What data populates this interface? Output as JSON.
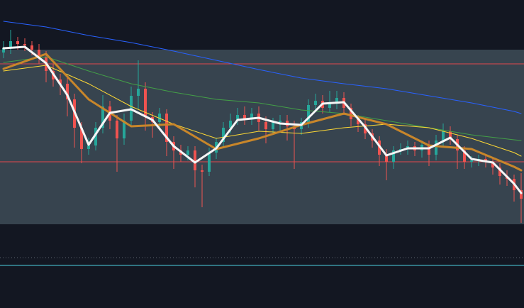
{
  "chart_data": {
    "type": "candlestick",
    "ylim": [
      0,
      434
    ],
    "background": "#131722",
    "up_color": "#26a69a",
    "down_color": "#ef5350",
    "zone": [
      118,
      364
    ],
    "zone_color": "#37444f",
    "levels": [
      {
        "value": 344,
        "color": "#e0474c",
        "style": "solid"
      },
      {
        "value": 206,
        "color": "#e0474c",
        "style": "solid"
      },
      {
        "value": 71,
        "color": "#5d6470",
        "style": "dotted"
      },
      {
        "value": 60,
        "color": "#4dd0e1",
        "style": "solid"
      }
    ],
    "open": [
      360,
      366,
      376,
      372,
      370,
      364,
      354,
      334,
      322,
      316,
      294,
      254,
      224,
      229,
      254,
      284,
      264,
      239,
      264,
      299,
      309,
      269,
      262,
      274,
      234,
      222,
      216,
      222,
      194,
      192,
      219,
      234,
      254,
      264,
      272,
      266,
      274,
      262,
      252,
      262,
      264,
      256,
      252,
      262,
      286,
      292,
      282,
      288,
      296,
      282,
      266,
      259,
      246,
      236,
      216,
      206,
      222,
      224,
      228,
      222,
      230,
      216,
      236,
      249,
      238,
      222,
      206,
      208,
      210,
      206,
      198,
      186,
      182,
      166
    ],
    "high": [
      376,
      392,
      382,
      380,
      376,
      372,
      362,
      344,
      330,
      326,
      302,
      262,
      240,
      262,
      300,
      292,
      272,
      274,
      312,
      349,
      318,
      276,
      282,
      280,
      242,
      230,
      228,
      228,
      202,
      226,
      240,
      262,
      274,
      282,
      284,
      282,
      284,
      270,
      268,
      272,
      272,
      264,
      268,
      294,
      302,
      300,
      306,
      306,
      304,
      288,
      272,
      266,
      252,
      242,
      224,
      228,
      232,
      236,
      234,
      236,
      236,
      244,
      260,
      256,
      244,
      228,
      214,
      216,
      216,
      212,
      204,
      194,
      188,
      190
    ],
    "low": [
      352,
      358,
      364,
      362,
      356,
      344,
      318,
      312,
      300,
      270,
      226,
      204,
      216,
      222,
      246,
      252,
      192,
      230,
      256,
      280,
      250,
      240,
      254,
      214,
      196,
      206,
      208,
      170,
      142,
      186,
      210,
      226,
      246,
      258,
      258,
      258,
      250,
      232,
      244,
      250,
      236,
      196,
      244,
      254,
      276,
      274,
      276,
      280,
      272,
      256,
      248,
      238,
      226,
      200,
      180,
      196,
      216,
      216,
      214,
      212,
      200,
      208,
      228,
      230,
      196,
      196,
      198,
      200,
      198,
      188,
      174,
      172,
      150,
      120
    ],
    "close": [
      366,
      376,
      372,
      370,
      364,
      354,
      334,
      322,
      316,
      294,
      254,
      224,
      229,
      254,
      284,
      264,
      239,
      264,
      299,
      309,
      269,
      262,
      274,
      234,
      222,
      216,
      222,
      194,
      192,
      219,
      234,
      254,
      264,
      272,
      266,
      274,
      262,
      252,
      262,
      264,
      256,
      252,
      262,
      286,
      292,
      282,
      288,
      296,
      282,
      266,
      259,
      246,
      236,
      216,
      206,
      222,
      224,
      228,
      222,
      230,
      216,
      236,
      249,
      238,
      222,
      206,
      208,
      210,
      206,
      198,
      186,
      182,
      166,
      154
    ],
    "series": [
      {
        "color": "#2962ff",
        "width": 1,
        "x": [
          0,
          6,
          12,
          18,
          24,
          30,
          36,
          42,
          48,
          54,
          60,
          66,
          72,
          73
        ],
        "values": [
          404,
          396,
          384,
          374,
          362,
          349,
          336,
          324,
          316,
          309,
          299,
          289,
          277,
          274
        ]
      },
      {
        "color": "#43a047",
        "width": 1,
        "x": [
          0,
          6,
          12,
          18,
          24,
          30,
          36,
          42,
          48,
          54,
          60,
          66,
          72,
          73
        ],
        "values": [
          346,
          354,
          334,
          316,
          304,
          294,
          289,
          279,
          274,
          264,
          254,
          244,
          237,
          236
        ]
      },
      {
        "color": "#fdd835",
        "width": 1,
        "x": [
          0,
          6,
          12,
          18,
          24,
          30,
          36,
          42,
          48,
          54,
          60,
          66,
          72,
          73
        ],
        "values": [
          334,
          342,
          316,
          284,
          259,
          239,
          249,
          246,
          254,
          259,
          254,
          239,
          219,
          214
        ]
      },
      {
        "color": "#c8862a",
        "width": 3,
        "x": [
          0,
          6,
          12,
          18,
          24,
          30,
          36,
          42,
          48,
          54,
          60,
          66,
          72,
          73
        ],
        "values": [
          337,
          358,
          294,
          256,
          259,
          224,
          239,
          258,
          274,
          259,
          229,
          224,
          199,
          194
        ]
      },
      {
        "color": "#f5f5f5",
        "width": 3,
        "x": [
          0,
          3,
          6,
          9,
          12,
          15,
          18,
          21,
          24,
          27,
          30,
          33,
          36,
          39,
          42,
          45,
          48,
          51,
          54,
          57,
          60,
          63,
          66,
          69,
          72,
          73
        ],
        "values": [
          366,
          368,
          345,
          300,
          230,
          275,
          280,
          265,
          228,
          205,
          225,
          265,
          268,
          260,
          258,
          288,
          290,
          255,
          215,
          225,
          225,
          240,
          210,
          205,
          175,
          162
        ]
      }
    ]
  }
}
